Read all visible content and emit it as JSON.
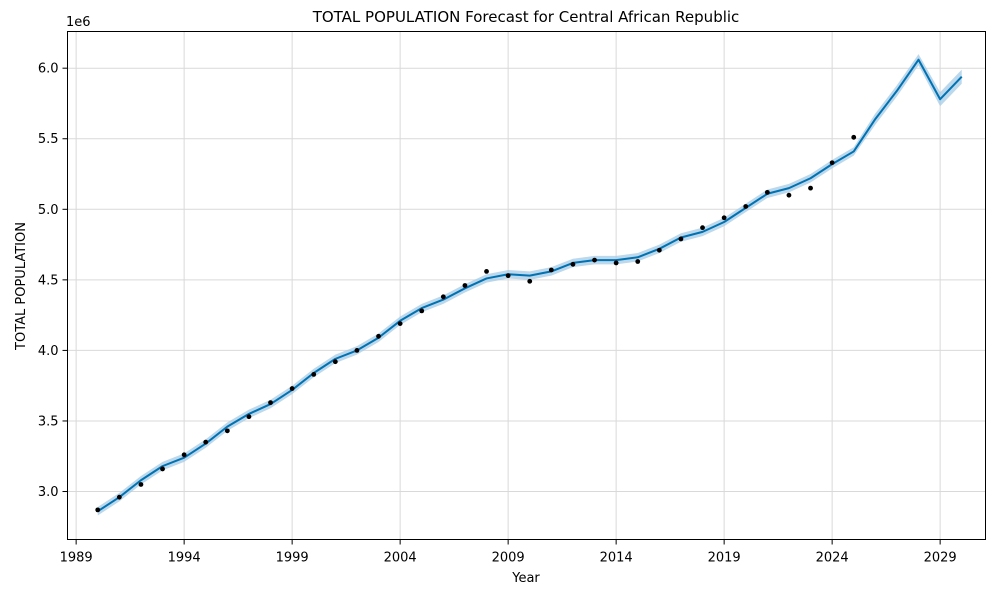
{
  "chart_data": {
    "type": "line",
    "title": "TOTAL POPULATION Forecast for Central African Republic",
    "xlabel": "Year",
    "ylabel": "TOTAL POPULATION",
    "y_offset_label": "1e6",
    "xlim": [
      1988.6,
      2031.1
    ],
    "ylim": [
      2.66,
      6.26
    ],
    "grid": true,
    "x_ticks": [
      1989,
      1994,
      1999,
      2004,
      2009,
      2014,
      2019,
      2024,
      2029
    ],
    "x_tick_labels": [
      "1989",
      "1994",
      "1999",
      "2004",
      "2009",
      "2014",
      "2019",
      "2024",
      "2029"
    ],
    "y_ticks": [
      3.0,
      3.5,
      4.0,
      4.5,
      5.0,
      5.5,
      6.0
    ],
    "y_tick_labels": [
      "3.0",
      "3.5",
      "4.0",
      "4.5",
      "5.0",
      "5.5",
      "6.0"
    ],
    "colors": {
      "forecast_line": "#0072B2",
      "uncertainty_band": "#a6cbe6",
      "actual_points": "#000000"
    },
    "series": [
      {
        "kind": "actual",
        "x": [
          1990,
          1991,
          1992,
          1993,
          1994,
          1995,
          1996,
          1997,
          1998,
          1999,
          2000,
          2001,
          2002,
          2003,
          2004,
          2005,
          2006,
          2007,
          2008,
          2009,
          2010,
          2011,
          2012,
          2013,
          2014,
          2015,
          2016,
          2017,
          2018,
          2019,
          2020,
          2021,
          2022,
          2023,
          2024,
          2025
        ],
        "y": [
          2.87,
          2.96,
          3.05,
          3.16,
          3.26,
          3.35,
          3.43,
          3.53,
          3.63,
          3.73,
          3.83,
          3.92,
          4.0,
          4.1,
          4.19,
          4.28,
          4.38,
          4.46,
          4.56,
          4.53,
          4.49,
          4.57,
          4.61,
          4.64,
          4.62,
          4.63,
          4.71,
          4.79,
          4.87,
          4.94,
          5.02,
          5.12,
          5.1,
          5.15,
          5.33,
          5.51
        ]
      },
      {
        "kind": "forecast",
        "x": [
          1990,
          1991,
          1992,
          1993,
          1994,
          1995,
          1996,
          1997,
          1998,
          1999,
          2000,
          2001,
          2002,
          2003,
          2004,
          2005,
          2006,
          2007,
          2008,
          2009,
          2010,
          2011,
          2012,
          2013,
          2014,
          2015,
          2016,
          2017,
          2018,
          2019,
          2020,
          2021,
          2022,
          2023,
          2024,
          2025,
          2026,
          2027,
          2028,
          2029,
          2030
        ],
        "y": [
          2.86,
          2.96,
          3.08,
          3.18,
          3.24,
          3.34,
          3.46,
          3.55,
          3.62,
          3.72,
          3.84,
          3.94,
          4.0,
          4.09,
          4.21,
          4.3,
          4.36,
          4.44,
          4.51,
          4.54,
          4.53,
          4.56,
          4.62,
          4.64,
          4.64,
          4.66,
          4.72,
          4.8,
          4.84,
          4.91,
          5.01,
          5.11,
          5.15,
          5.22,
          5.32,
          5.41,
          5.64,
          5.84,
          6.06,
          5.78,
          5.94
        ],
        "lower": [
          2.83,
          2.93,
          3.05,
          3.15,
          3.21,
          3.31,
          3.43,
          3.52,
          3.59,
          3.69,
          3.81,
          3.91,
          3.97,
          4.06,
          4.18,
          4.27,
          4.33,
          4.41,
          4.48,
          4.51,
          4.5,
          4.53,
          4.59,
          4.61,
          4.61,
          4.63,
          4.69,
          4.77,
          4.81,
          4.88,
          4.98,
          5.08,
          5.12,
          5.19,
          5.29,
          5.38,
          5.6,
          5.8,
          6.02,
          5.73,
          5.89
        ],
        "upper": [
          2.89,
          2.99,
          3.11,
          3.21,
          3.27,
          3.37,
          3.49,
          3.58,
          3.65,
          3.75,
          3.87,
          3.97,
          4.03,
          4.12,
          4.24,
          4.33,
          4.39,
          4.47,
          4.54,
          4.57,
          4.56,
          4.59,
          4.65,
          4.67,
          4.67,
          4.69,
          4.75,
          4.83,
          4.87,
          4.94,
          5.04,
          5.14,
          5.18,
          5.25,
          5.35,
          5.44,
          5.68,
          5.88,
          6.1,
          5.83,
          5.99
        ]
      }
    ]
  }
}
